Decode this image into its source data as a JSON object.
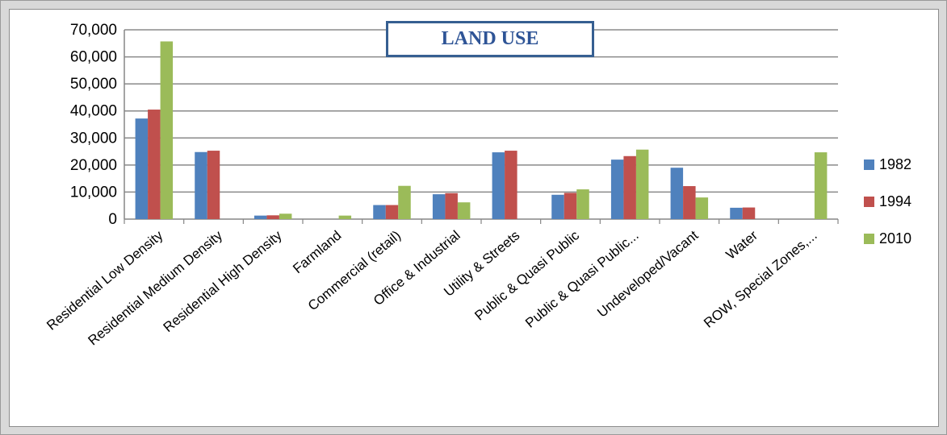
{
  "chart_data": {
    "type": "bar",
    "title": "LAND USE",
    "xlabel": "",
    "ylabel": "",
    "ylim": [
      0,
      70000
    ],
    "yticks": [
      "0",
      "10,000",
      "20,000",
      "30,000",
      "40,000",
      "50,000",
      "60,000",
      "70,000"
    ],
    "grid": true,
    "legend_position": "right",
    "categories": [
      "Residential Low Density",
      "Residential Medium Density",
      "Residential High Density",
      "Farmland",
      "Commercial (retail)",
      "Office & Industrial",
      "Utility & Streets",
      "Public & Quasi Public",
      "Public & Quasi Public...",
      "Undeveloped/Vacant",
      "Water",
      "ROW, Special Zones,..."
    ],
    "series": [
      {
        "name": "1982",
        "color": "#4f81bd",
        "values": [
          37200,
          24800,
          1300,
          0,
          5200,
          9200,
          24700,
          9000,
          22000,
          19000,
          4200,
          0
        ]
      },
      {
        "name": "1994",
        "color": "#c0504d",
        "values": [
          40500,
          25300,
          1400,
          0,
          5200,
          9600,
          25300,
          9700,
          23300,
          12200,
          4300,
          0
        ]
      },
      {
        "name": "2010",
        "color": "#9bbb59",
        "values": [
          65700,
          0,
          2000,
          1300,
          12300,
          6200,
          0,
          11000,
          25700,
          8000,
          0,
          24700
        ]
      }
    ]
  }
}
